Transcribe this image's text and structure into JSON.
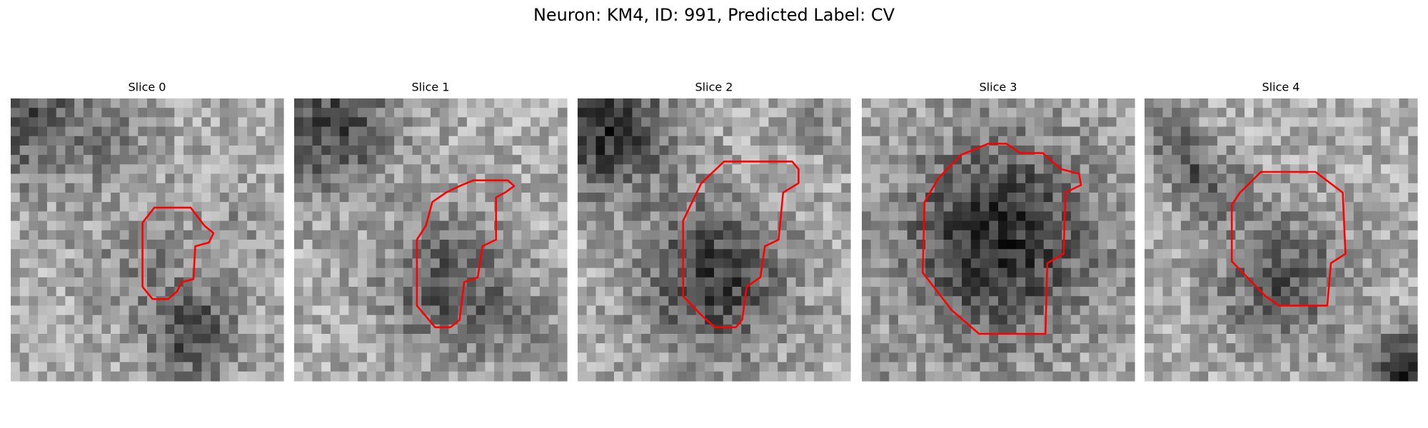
{
  "title": "Neuron: KM4, ID: 991, Predicted Label: CV",
  "panels": [
    {
      "title": "Slice 0"
    },
    {
      "title": "Slice 1"
    },
    {
      "title": "Slice 2"
    },
    {
      "title": "Slice 3"
    },
    {
      "title": "Slice 4"
    }
  ]
}
